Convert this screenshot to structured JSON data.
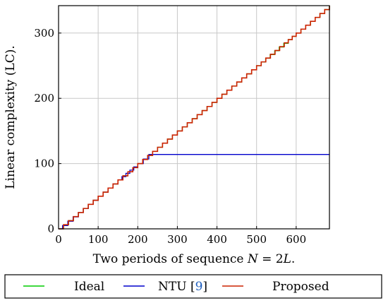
{
  "chart_data": {
    "type": "line",
    "xlabel_parts": [
      "Two periods of sequence ",
      "N",
      " = 2",
      "L",
      "."
    ],
    "ylabel": "Linear complexity (LC).",
    "xlim": [
      0,
      684
    ],
    "ylim": [
      0,
      342
    ],
    "xticks": [
      0,
      100,
      200,
      300,
      400,
      500,
      600
    ],
    "yticks": [
      0,
      100,
      200,
      300
    ],
    "grid": true,
    "legend_position": "bottom",
    "series": [
      {
        "name": "Ideal",
        "color": "#00cc00",
        "x": [
          0,
          100,
          200,
          300,
          400,
          500,
          580,
          600,
          684
        ],
        "y": [
          0,
          50,
          100,
          150,
          200,
          250,
          290,
          300,
          342
        ]
      },
      {
        "name": "NTU [9]",
        "color": "#0000cc",
        "x": [
          0,
          10,
          50,
          100,
          150,
          180,
          200,
          228,
          300,
          400,
          500,
          600,
          684
        ],
        "y": [
          0,
          5,
          25,
          50,
          75,
          90,
          100,
          114,
          114,
          114,
          114,
          114,
          114
        ]
      },
      {
        "name": "Proposed",
        "color": "#cc2200",
        "x": [
          0,
          100,
          200,
          300,
          400,
          500,
          570,
          590,
          600,
          684
        ],
        "y": [
          0,
          50,
          100,
          150,
          200,
          250,
          285,
          295,
          300,
          342
        ]
      }
    ],
    "legend": [
      {
        "label": "Ideal"
      },
      {
        "label_prefix": "NTU [",
        "label_ref": "9",
        "label_suffix": "]",
        "ref_color": "#1f5fbf"
      },
      {
        "label": "Proposed"
      }
    ]
  }
}
